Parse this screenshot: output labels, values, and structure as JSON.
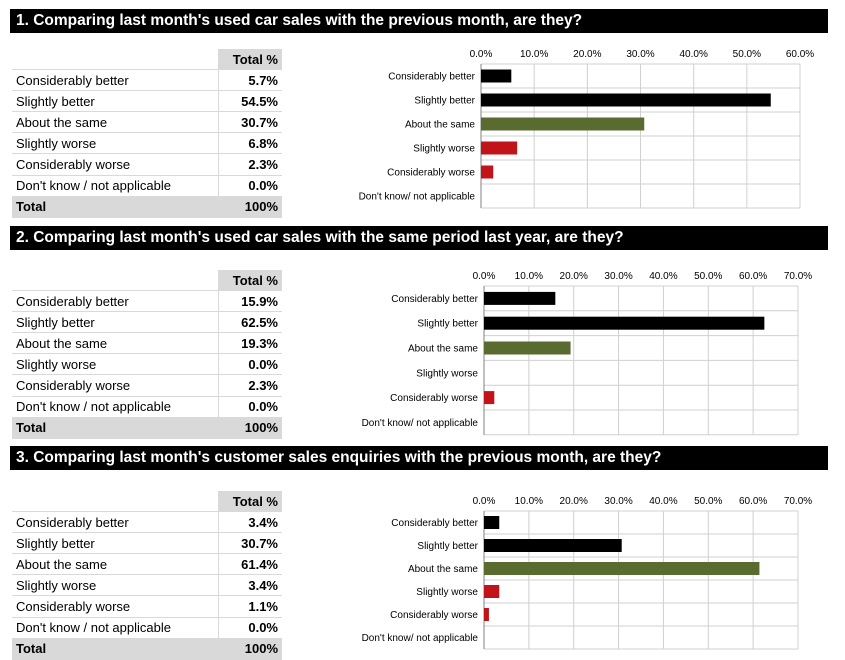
{
  "total_header": "Total %",
  "total_label": "Total",
  "total_value": "100%",
  "colors": {
    "better": "#000000",
    "same": "#5a6b2f",
    "worse": "#c0141a"
  },
  "sections": [
    {
      "question": "1. Comparing last month's used car sales with the previous month, are they?",
      "rows": [
        {
          "label": "Considerably better",
          "value": "5.7%"
        },
        {
          "label": "Slightly better",
          "value": "54.5%"
        },
        {
          "label": "About the same",
          "value": "30.7%"
        },
        {
          "label": "Slightly worse",
          "value": "6.8%"
        },
        {
          "label": "Considerably worse",
          "value": "2.3%"
        },
        {
          "label": "Don't know / not applicable",
          "value": "0.0%"
        }
      ]
    },
    {
      "question": "2. Comparing last month's used car sales with the same period last year, are they?",
      "rows": [
        {
          "label": "Considerably better",
          "value": "15.9%"
        },
        {
          "label": "Slightly better",
          "value": "62.5%"
        },
        {
          "label": "About the same",
          "value": "19.3%"
        },
        {
          "label": "Slightly worse",
          "value": "0.0%"
        },
        {
          "label": "Considerably worse",
          "value": "2.3%"
        },
        {
          "label": "Don't know / not applicable",
          "value": "0.0%"
        }
      ]
    },
    {
      "question": "3. Comparing last month's customer sales enquiries with the previous month, are they?",
      "rows": [
        {
          "label": "Considerably better",
          "value": "3.4%"
        },
        {
          "label": "Slightly better",
          "value": "30.7%"
        },
        {
          "label": "About the same",
          "value": "61.4%"
        },
        {
          "label": "Slightly worse",
          "value": "3.4%"
        },
        {
          "label": "Considerably worse",
          "value": "1.1%"
        },
        {
          "label": "Don't know / not applicable",
          "value": "0.0%"
        }
      ]
    }
  ],
  "chart_data": [
    {
      "type": "bar",
      "orientation": "horizontal",
      "categories": [
        "Considerably better",
        "Slightly better",
        "About the same",
        "Slightly worse",
        "Considerably worse",
        "Don't know/ not applicable"
      ],
      "values": [
        5.7,
        54.5,
        30.7,
        6.8,
        2.3,
        0.0
      ],
      "bar_colors": [
        "#000000",
        "#000000",
        "#5a6b2f",
        "#c0141a",
        "#c0141a",
        "#c0141a"
      ],
      "xlim": [
        0,
        60
      ],
      "ticks": [
        0,
        10,
        20,
        30,
        40,
        50,
        60
      ],
      "tick_labels": [
        "0.0%",
        "10.0%",
        "20.0%",
        "30.0%",
        "40.0%",
        "50.0%",
        "60.0%"
      ],
      "axis_position": "top",
      "grid": true
    },
    {
      "type": "bar",
      "orientation": "horizontal",
      "categories": [
        "Considerably better",
        "Slightly better",
        "About the same",
        "Slightly worse",
        "Considerably worse",
        "Don't know/ not applicable"
      ],
      "values": [
        15.9,
        62.5,
        19.3,
        0.0,
        2.3,
        0.0
      ],
      "bar_colors": [
        "#000000",
        "#000000",
        "#5a6b2f",
        "#c0141a",
        "#c0141a",
        "#c0141a"
      ],
      "xlim": [
        0,
        70
      ],
      "ticks": [
        0,
        10,
        20,
        30,
        40,
        50,
        60,
        70
      ],
      "tick_labels": [
        "0.0%",
        "10.0%",
        "20.0%",
        "30.0%",
        "40.0%",
        "50.0%",
        "60.0%",
        "70.0%"
      ],
      "axis_position": "top",
      "grid": true
    },
    {
      "type": "bar",
      "orientation": "horizontal",
      "categories": [
        "Considerably better",
        "Slightly better",
        "About the same",
        "Slightly worse",
        "Considerably worse",
        "Don't know/ not applicable"
      ],
      "values": [
        3.4,
        30.7,
        61.4,
        3.4,
        1.1,
        0.0
      ],
      "bar_colors": [
        "#000000",
        "#000000",
        "#5a6b2f",
        "#c0141a",
        "#c0141a",
        "#c0141a"
      ],
      "xlim": [
        0,
        70
      ],
      "ticks": [
        0,
        10,
        20,
        30,
        40,
        50,
        60,
        70
      ],
      "tick_labels": [
        "0.0%",
        "10.0%",
        "20.0%",
        "30.0%",
        "40.0%",
        "50.0%",
        "60.0%",
        "70.0%"
      ],
      "axis_position": "top",
      "grid": true
    }
  ]
}
